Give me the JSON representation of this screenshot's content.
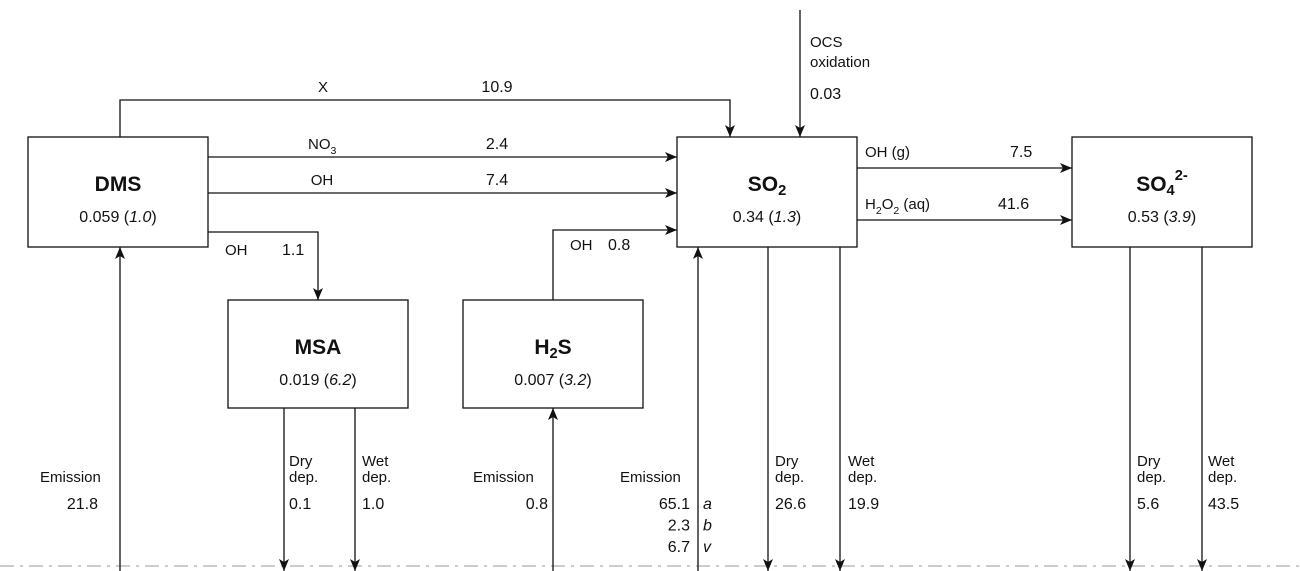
{
  "nodes": [
    {
      "name": [
        {
          "text": "DMS"
        }
      ],
      "value": [
        {
          "text": "0.059 ("
        },
        {
          "italic": "1.0"
        },
        {
          "text": ")"
        }
      ]
    },
    {
      "name": [
        {
          "text": "SO"
        },
        {
          "sub": "2"
        }
      ],
      "value": [
        {
          "text": "0.34 ("
        },
        {
          "italic": "1.3"
        },
        {
          "text": ")"
        }
      ]
    },
    {
      "name": [
        {
          "text": "SO"
        },
        {
          "sub": "4"
        },
        {
          "sup": "2-"
        }
      ],
      "value": [
        {
          "text": "0.53 ("
        },
        {
          "italic": "3.9"
        },
        {
          "text": ")"
        }
      ]
    },
    {
      "name": [
        {
          "text": "MSA"
        }
      ],
      "value": [
        {
          "text": "0.019 ("
        },
        {
          "italic": "6.2"
        },
        {
          "text": ")"
        }
      ]
    },
    {
      "name": [
        {
          "text": "H"
        },
        {
          "sub": "2"
        },
        {
          "text": "S"
        }
      ],
      "value": [
        {
          "text": "0.007 ("
        },
        {
          "italic": "3.2"
        },
        {
          "text": ")"
        }
      ]
    }
  ],
  "flows": [
    {
      "label": [
        {
          "text": "X"
        }
      ],
      "value": "10.9"
    },
    {
      "label": [
        {
          "text": "NO"
        },
        {
          "sub": "3"
        }
      ],
      "value": "2.4"
    },
    {
      "label": [
        {
          "text": "OH"
        }
      ],
      "value": "7.4"
    },
    {
      "label": [
        {
          "text": "OH"
        }
      ],
      "value": "1.1"
    },
    {
      "label": [
        {
          "text": "OH"
        }
      ],
      "value": "0.8"
    },
    {
      "lines": [
        "OCS",
        "oxidation"
      ],
      "value": "0.03"
    },
    {
      "label": [
        {
          "text": "OH (g)"
        }
      ],
      "value": "7.5"
    },
    {
      "label": [
        {
          "text": "H"
        },
        {
          "sub": "2"
        },
        {
          "text": "O"
        },
        {
          "sub": "2"
        },
        {
          "text": " (aq)"
        }
      ],
      "value": "41.6"
    },
    {
      "label": [
        {
          "text": "Emission"
        }
      ],
      "value": "21.8"
    },
    {
      "lines": [
        "Dry",
        "dep."
      ],
      "value": "0.1"
    },
    {
      "lines": [
        "Wet",
        "dep."
      ],
      "value": "1.0"
    },
    {
      "label": [
        {
          "text": "Emission"
        }
      ],
      "value": "0.8"
    },
    {
      "label": [
        {
          "text": "Emission"
        }
      ],
      "values": [
        "65.1",
        "2.3",
        "6.7"
      ],
      "notes": [
        "a",
        "b",
        "v"
      ]
    },
    {
      "lines": [
        "Dry",
        "dep."
      ],
      "value": "26.6"
    },
    {
      "lines": [
        "Wet",
        "dep."
      ],
      "value": "19.9"
    },
    {
      "lines": [
        "Dry",
        "dep."
      ],
      "value": "5.6"
    },
    {
      "lines": [
        "Wet",
        "dep."
      ],
      "value": "43.5"
    }
  ]
}
